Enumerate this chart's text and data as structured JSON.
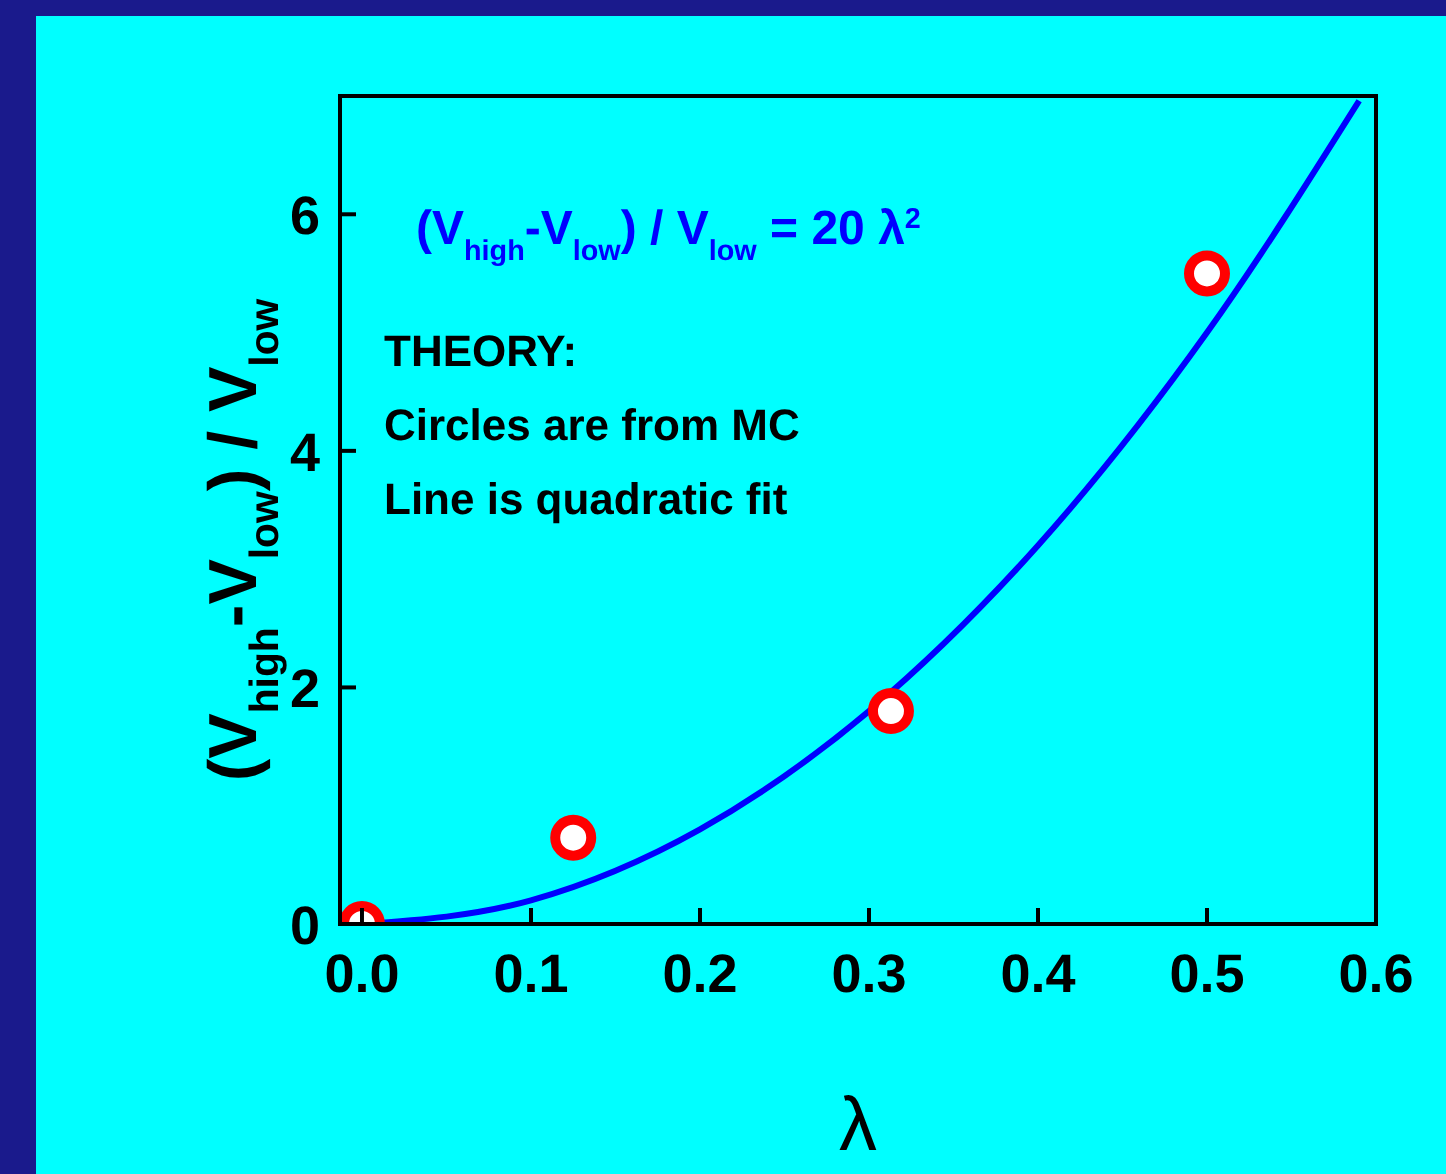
{
  "chart_data": {
    "type": "scatter",
    "xlabel": "λ",
    "ylabel": "(V$_{high}$-V$_{low}$) / V$_{low}$",
    "xlim": [
      -0.013,
      0.6
    ],
    "ylim": [
      0,
      7
    ],
    "xticks": [
      {
        "value": 0,
        "label": "0.0"
      },
      {
        "value": 0.1,
        "label": "0.1"
      },
      {
        "value": 0.2,
        "label": "0.2"
      },
      {
        "value": 0.3,
        "label": "0.3"
      },
      {
        "value": 0.4,
        "label": "0.4"
      },
      {
        "value": 0.5,
        "label": "0.5"
      },
      {
        "value": 0.6,
        "label": "0.6"
      }
    ],
    "yticks": [
      0,
      2,
      4,
      6
    ],
    "series": [
      {
        "color": "#ff0000",
        "marker": "circle",
        "x": [
          0,
          0.125,
          0.313,
          0.5
        ],
        "values": [
          0,
          0.73,
          1.8,
          5.5
        ]
      },
      {
        "type": "line",
        "color": "#0000ff",
        "marker": "none",
        "x": [
          0,
          0.1,
          0.2,
          0.3,
          0.4,
          0.5,
          0.59
        ],
        "values": [
          0,
          0.2,
          0.8,
          1.8,
          3.2,
          5.0,
          6.96
        ]
      }
    ],
    "annotations": [
      "(V$_{high}$-V$_{low}$) / V$_{low}$ = 20 λ$^{2}$",
      "THEORY:",
      "Circles are from MC",
      "Line is quadratic fit"
    ],
    "grid": false
  }
}
